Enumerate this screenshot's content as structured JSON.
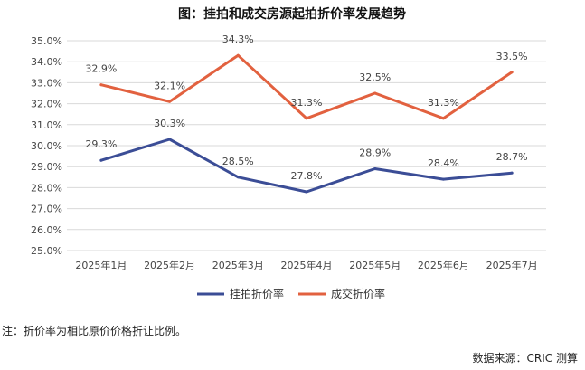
{
  "chart_data": {
    "type": "line",
    "title": "图：挂拍和成交房源起拍折价率发展趋势",
    "categories": [
      "2025年1月",
      "2025年2月",
      "2025年3月",
      "2025年4月",
      "2025年5月",
      "2025年6月",
      "2025年7月"
    ],
    "y_ticks": [
      "25.0%",
      "26.0%",
      "27.0%",
      "28.0%",
      "29.0%",
      "30.0%",
      "31.0%",
      "32.0%",
      "33.0%",
      "34.0%",
      "35.0%"
    ],
    "ylim": [
      25.0,
      35.0
    ],
    "ystep": 1.0,
    "series": [
      {
        "name": "挂拍折价率",
        "color": "#3b4d96",
        "values": [
          29.3,
          30.3,
          28.5,
          27.8,
          28.9,
          28.4,
          28.7
        ],
        "labels": [
          "29.3%",
          "30.3%",
          "28.5%",
          "27.8%",
          "28.9%",
          "28.4%",
          "28.7%"
        ]
      },
      {
        "name": "成交折价率",
        "color": "#e2613f",
        "values": [
          32.9,
          32.1,
          34.3,
          31.3,
          32.5,
          31.3,
          33.5
        ],
        "labels": [
          "32.9%",
          "32.1%",
          "34.3%",
          "31.3%",
          "32.5%",
          "31.3%",
          "33.5%"
        ]
      }
    ],
    "legend_position": "bottom-center",
    "grid": true
  },
  "note": "注：折价率为相比原价价格折让比例。",
  "source": "数据来源：CRIC 测算"
}
